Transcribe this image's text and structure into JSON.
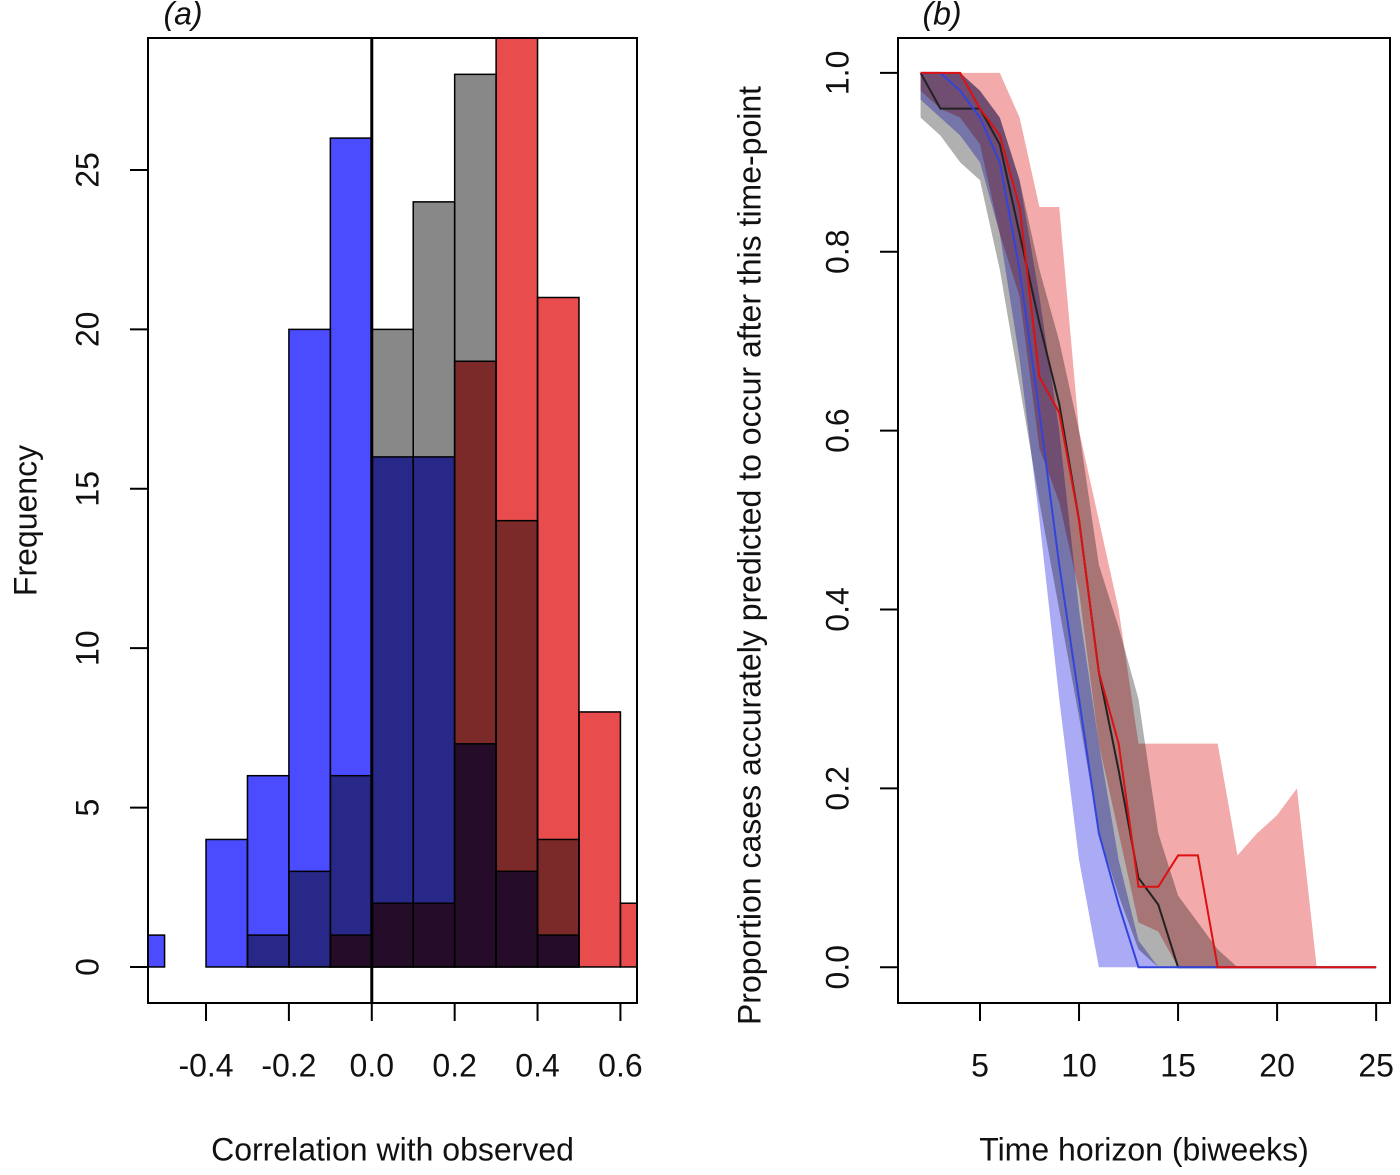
{
  "chart_data": [
    {
      "type": "histogram",
      "title": "(a)",
      "xlabel": "Correlation with observed",
      "ylabel": "Frequency",
      "bins": [
        -0.6,
        -0.5,
        -0.4,
        -0.3,
        -0.2,
        -0.1,
        0,
        0.1,
        0.2,
        0.3,
        0.4,
        0.5,
        0.6,
        0.7
      ],
      "series": [
        {
          "color": "#888888",
          "values": [
            0,
            0,
            0,
            1,
            3,
            6,
            20,
            24,
            28,
            14,
            4,
            0,
            0
          ]
        },
        {
          "color": "#e84c4c",
          "values": [
            0,
            0,
            0,
            0,
            0,
            1,
            2,
            2,
            19,
            30,
            21,
            8,
            2
          ]
        },
        {
          "color": "#4b4bff",
          "values": [
            1,
            0,
            4,
            6,
            20,
            26,
            16,
            16,
            7,
            3,
            1,
            0,
            0
          ]
        }
      ],
      "vline": 0,
      "xlim": [
        -0.54,
        0.64
      ],
      "ylim": [
        -1.13,
        29.14
      ],
      "xticks": [
        -0.4,
        -0.2,
        {
          "value": 0,
          "label": "0.0"
        },
        0.2,
        0.4,
        0.6
      ],
      "yticks": [
        0,
        5,
        10,
        15,
        20,
        25
      ]
    },
    {
      "type": "line",
      "title": "(b)",
      "xlabel": "Time horizon (biweeks)",
      "ylabel": "Proportion cases accurately predicted to occur after this time-point",
      "x": [
        2,
        3,
        4,
        5,
        6,
        7,
        8,
        9,
        10,
        11,
        12,
        13,
        14,
        15,
        16,
        17,
        18,
        19,
        20,
        21,
        22,
        23,
        24,
        25
      ],
      "series": [
        {
          "color": "#222222",
          "band_color": "#b0b0b0",
          "values": [
            1,
            0.96,
            0.96,
            0.96,
            0.92,
            0.82,
            0.72,
            0.63,
            0.5,
            0.33,
            0.22,
            0.1,
            0.07,
            0,
            0,
            0,
            0,
            0,
            0,
            0,
            0,
            0,
            0,
            0
          ],
          "upper": [
            1,
            1,
            1,
            0.98,
            0.95,
            0.88,
            0.78,
            0.7,
            0.6,
            0.45,
            0.38,
            0.3,
            0.15,
            0.08,
            0.05,
            0.02,
            0,
            0,
            0,
            0,
            0,
            0,
            0,
            0
          ],
          "lower": [
            0.95,
            0.93,
            0.9,
            0.88,
            0.78,
            0.65,
            0.52,
            0.4,
            0.28,
            0.15,
            0.08,
            0.02,
            0,
            0,
            0,
            0,
            0,
            0,
            0,
            0,
            0,
            0,
            0,
            0
          ]
        },
        {
          "color": "#3344dd",
          "band_color": "#aaaaf5",
          "values": [
            1,
            1,
            0.98,
            0.95,
            0.9,
            0.78,
            0.62,
            0.45,
            0.3,
            0.15,
            0.07,
            0,
            0,
            0,
            0,
            0,
            0,
            0,
            0,
            0,
            0,
            0,
            0,
            0
          ],
          "upper": [
            1,
            1,
            1,
            0.98,
            0.95,
            0.88,
            0.75,
            0.6,
            0.4,
            0.25,
            0.12,
            0.03,
            0,
            0,
            0,
            0,
            0,
            0,
            0,
            0,
            0,
            0,
            0,
            0
          ],
          "lower": [
            0.97,
            0.95,
            0.93,
            0.9,
            0.82,
            0.68,
            0.5,
            0.3,
            0.12,
            0,
            0,
            0,
            0,
            0,
            0,
            0,
            0,
            0,
            0,
            0,
            0,
            0,
            0,
            0
          ]
        },
        {
          "color": "#dd1111",
          "band_color": "#f2aaaa",
          "values": [
            1,
            1,
            1,
            0.96,
            0.93,
            0.85,
            0.66,
            0.62,
            0.5,
            0.33,
            0.25,
            0.09,
            0.09,
            0.125,
            0.125,
            0,
            0,
            0,
            0,
            0,
            0,
            0,
            0,
            0
          ],
          "upper": [
            1,
            1,
            1,
            1,
            1,
            0.95,
            0.85,
            0.85,
            0.6,
            0.5,
            0.4,
            0.25,
            0.25,
            0.25,
            0.25,
            0.25,
            0.125,
            0.15,
            0.17,
            0.2,
            0,
            0,
            0,
            0
          ],
          "lower": [
            0.98,
            0.96,
            0.95,
            0.92,
            0.82,
            0.75,
            0.58,
            0.52,
            0.42,
            0.25,
            0.15,
            0.05,
            0.04,
            0,
            0,
            0,
            0,
            0,
            0,
            0,
            0,
            0,
            0,
            0
          ]
        }
      ],
      "xlim": [
        0.86,
        25.7
      ],
      "ylim": [
        -0.04,
        1.039
      ],
      "xticks": [
        5,
        10,
        15,
        20,
        25
      ],
      "yticks": [
        {
          "value": 0,
          "label": "0.0"
        },
        {
          "value": 0.2,
          "label": "0.2"
        },
        {
          "value": 0.4,
          "label": "0.4"
        },
        {
          "value": 0.6,
          "label": "0.6"
        },
        {
          "value": 0.8,
          "label": "0.8"
        },
        {
          "value": 1,
          "label": "1.0"
        }
      ]
    }
  ]
}
